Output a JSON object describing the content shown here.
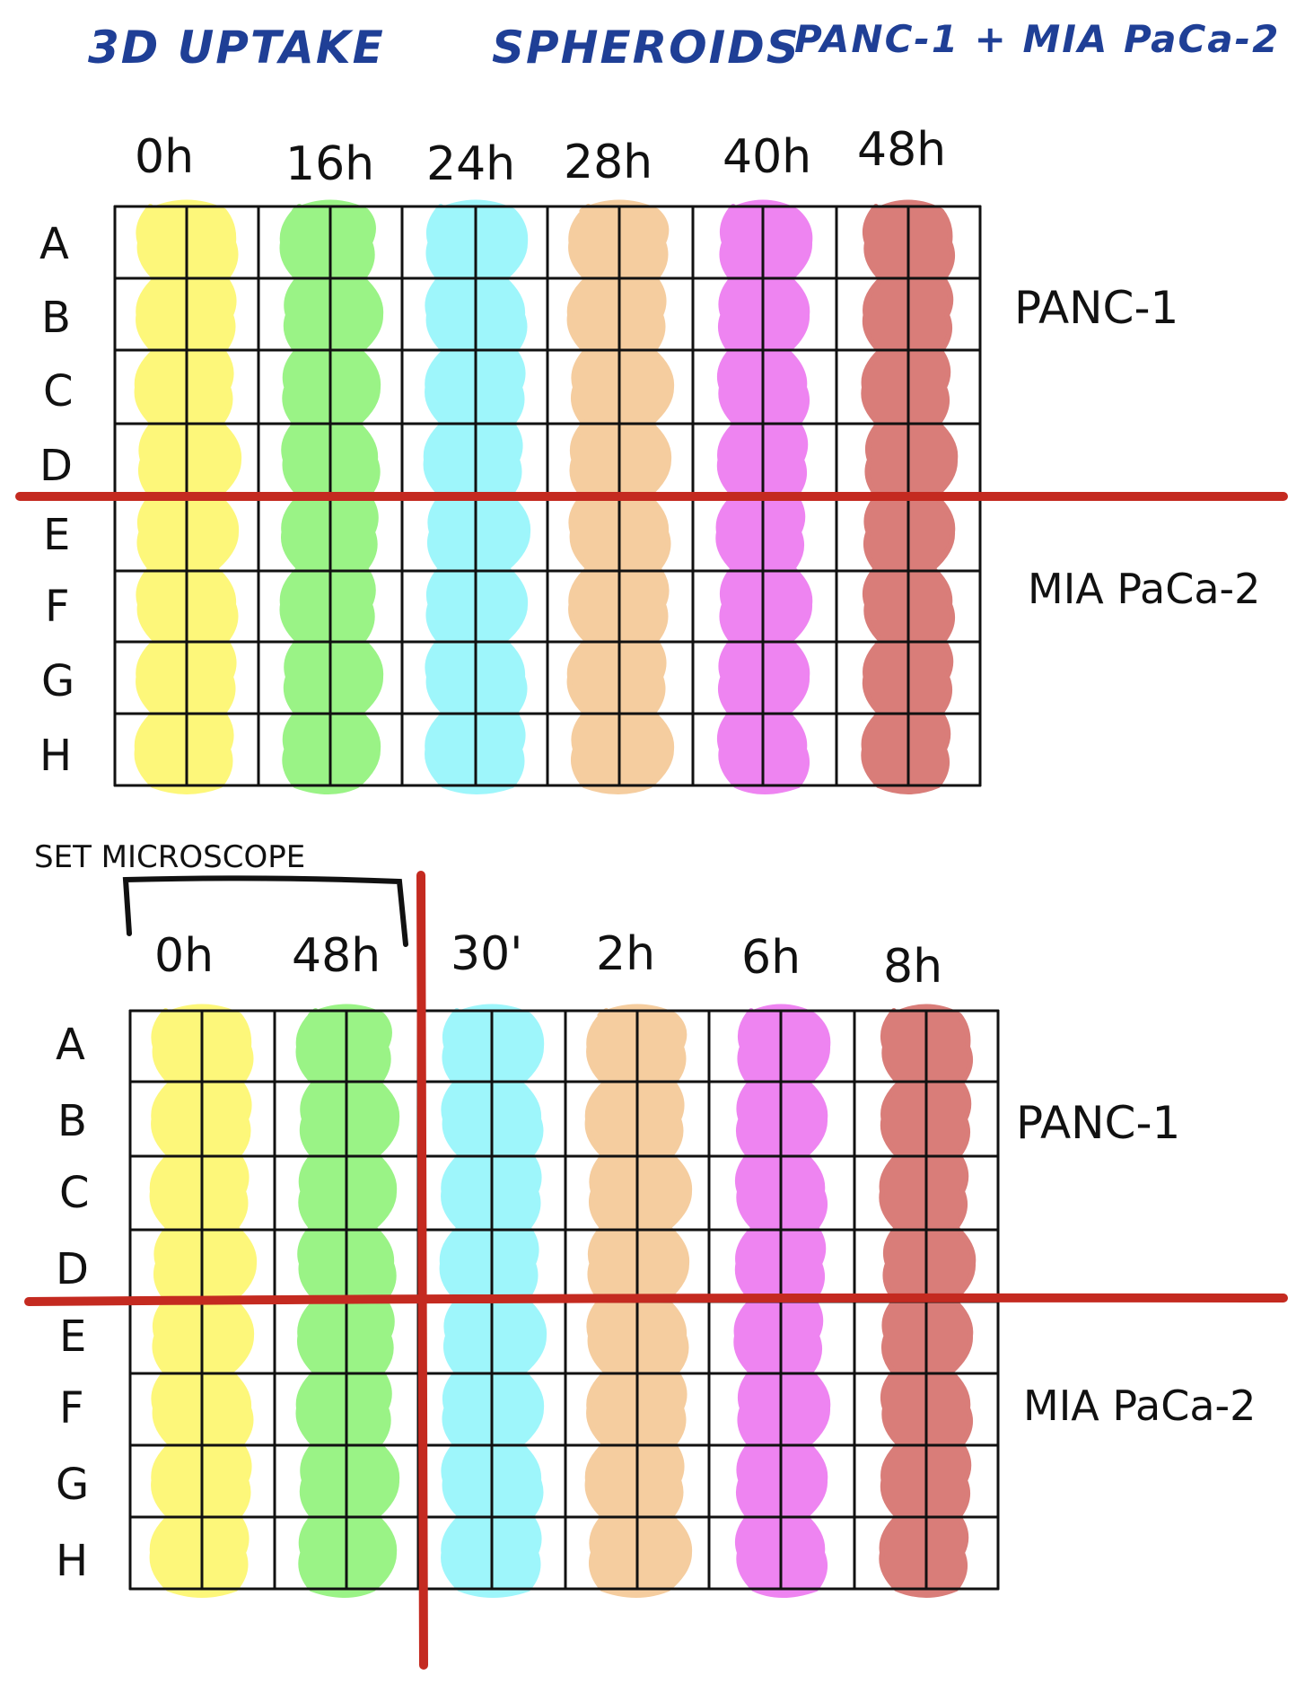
{
  "title": {
    "uptake": "3D UPTAKE",
    "spheroids": "SPHEROIDS",
    "cells": "PANC-1 + MIA PaCa-2"
  },
  "plates": [
    {
      "timepoints": [
        "0h",
        "16h",
        "24h",
        "28h",
        "40h",
        "48h"
      ],
      "rows": [
        "A",
        "B",
        "C",
        "D",
        "E",
        "F",
        "G",
        "H"
      ],
      "groups": [
        "PANC-1",
        "MIA PaCa-2"
      ]
    },
    {
      "note": "SET MICROSCOPE",
      "timepoints": [
        "0h",
        "48h",
        "30'",
        "2h",
        "6h",
        "8h"
      ],
      "rows": [
        "A",
        "B",
        "C",
        "D",
        "E",
        "F",
        "G",
        "H"
      ],
      "groups": [
        "PANC-1",
        "MIA PaCa-2"
      ]
    }
  ],
  "colors": {
    "col1": "#fdf77a",
    "col2": "#9af386",
    "col3": "#9ef6fb",
    "col4": "#f5cd9f",
    "col5": "#ee84f1",
    "col6": "#d97d79",
    "divider": "#c42a20",
    "grid": "#111111",
    "title": "#1f3f96"
  }
}
